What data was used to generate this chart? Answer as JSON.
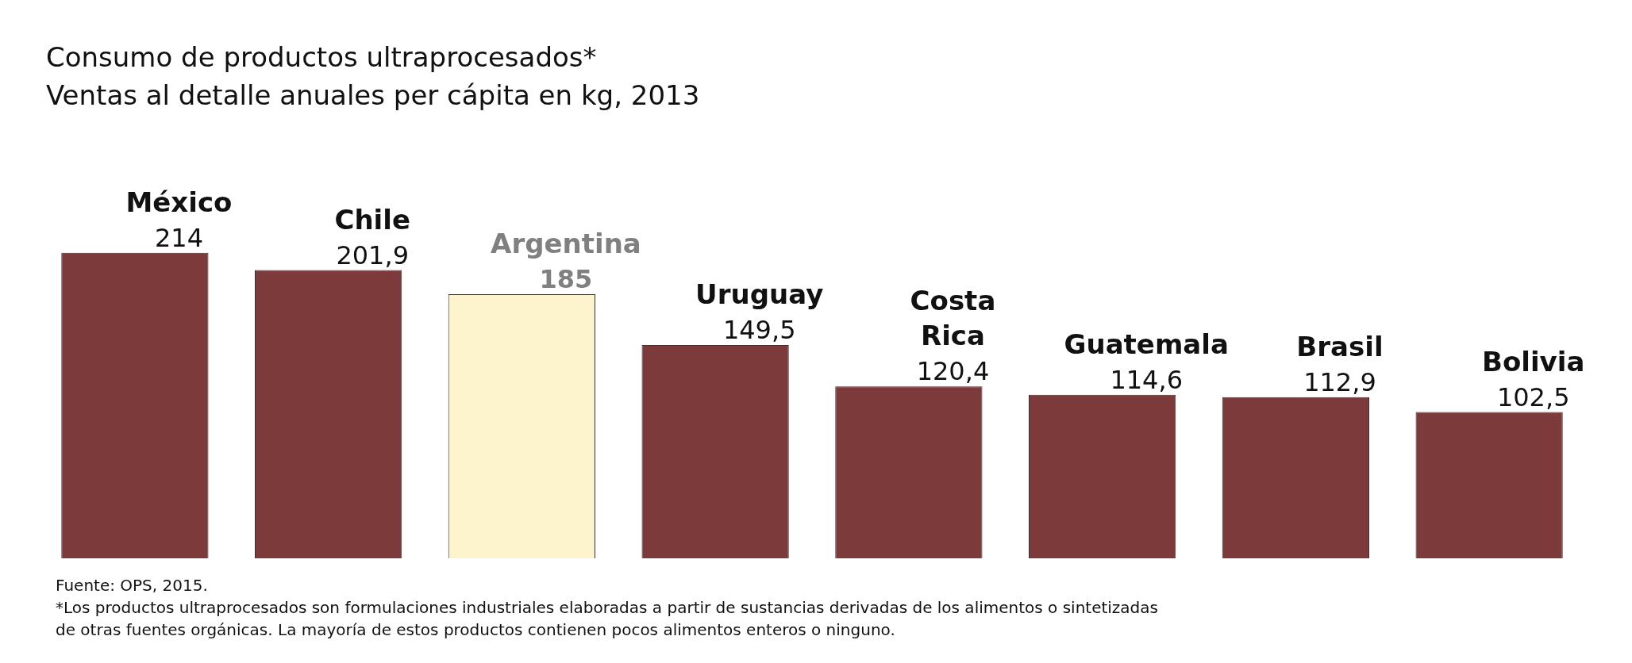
{
  "chart_data": {
    "type": "bar",
    "title": "Consumo de productos ultraprocesados*",
    "subtitle": "Ventas al detalle anuales per cápita en kg, 2013",
    "categories": [
      "México",
      "Chile",
      "Argentina",
      "Uruguay",
      "Costa Rica",
      "Guatemala",
      "Brasil",
      "Bolivia"
    ],
    "values": [
      214,
      201.9,
      185,
      149.5,
      120.4,
      114.6,
      112.9,
      102.5
    ],
    "value_labels": [
      "214",
      "201,9",
      "185",
      "149,5",
      "120,4",
      "114,6",
      "112,9",
      "102,5"
    ],
    "colors": [
      "#7d3a3b",
      "#7d3a3b",
      "#fdf3cc",
      "#7d3a3b",
      "#7d3a3b",
      "#7d3a3b",
      "#7d3a3b",
      "#7d3a3b"
    ],
    "annotations": [
      "Fuente: OPS, 2015.",
      "*Los productos ultraprocesados son formulaciones industriales elaboradas a partir de sustancias derivadas de los alimentos o sintetizadas de otras fuentes orgánicas. La mayoría de estos productos contienen pocos alimentos enteros o ninguno."
    ],
    "legend": false
  }
}
